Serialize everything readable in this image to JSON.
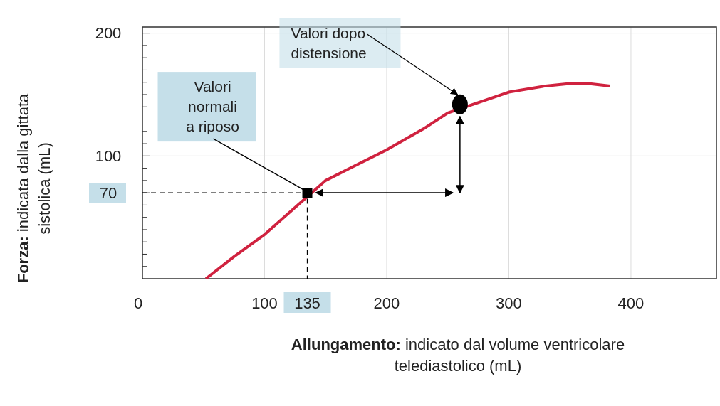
{
  "chart_data": {
    "type": "line",
    "xlabel": "Allungamento: indicato dal volume ventricolare\ntelediastolico (mL)",
    "ylabel": "Forza: indicata dalla gittata\nsistolica (mL)",
    "xlim": [
      0,
      470
    ],
    "ylim": [
      0,
      205
    ],
    "xticks": [
      0,
      100,
      135,
      200,
      300,
      400
    ],
    "yticks": [
      {
        "value": 10,
        "label": null
      },
      {
        "value": 20,
        "label": null
      },
      {
        "value": 30,
        "label": null
      },
      {
        "value": 40,
        "label": null
      },
      {
        "value": 50,
        "label": null
      },
      {
        "value": 60,
        "label": null
      },
      70,
      {
        "value": 80,
        "label": null
      },
      {
        "value": 90,
        "label": null
      },
      100,
      {
        "value": 110,
        "label": null
      },
      {
        "value": 120,
        "label": null
      },
      {
        "value": 130,
        "label": null
      },
      {
        "value": 140,
        "label": null
      },
      {
        "value": 150,
        "label": null
      },
      {
        "value": 160,
        "label": null
      },
      {
        "value": 170,
        "label": null
      },
      {
        "value": 180,
        "label": null
      },
      {
        "value": 190,
        "label": null
      },
      200
    ],
    "grid": true,
    "series": [
      {
        "type": "line",
        "color": "#d0223f",
        "x": [
          52,
          75,
          100,
          150,
          170,
          200,
          230,
          250,
          300,
          330,
          350,
          365,
          383
        ],
        "values": [
          0,
          18,
          36,
          80,
          90,
          105,
          122,
          135,
          152,
          157,
          159,
          159,
          157
        ]
      },
      {
        "color": "#000000",
        "line_style": "dashed",
        "x": [
          0,
          135,
          135
        ],
        "values": [
          70,
          70,
          0
        ]
      },
      {
        "type": "scatter",
        "color": "#000000",
        "marker": "square",
        "x": [
          135
        ],
        "values": [
          70
        ]
      },
      {
        "type": "scatter",
        "color": "#000000",
        "marker": "circle",
        "x": [
          260
        ],
        "values": [
          142
        ]
      }
    ],
    "annotations": [
      {
        "text": "Valori\nnormali\na riposo",
        "x": 135,
        "y": 70
      },
      {
        "text": "Valori dopo\ndistensione",
        "x": 258,
        "y": 150
      }
    ]
  }
}
